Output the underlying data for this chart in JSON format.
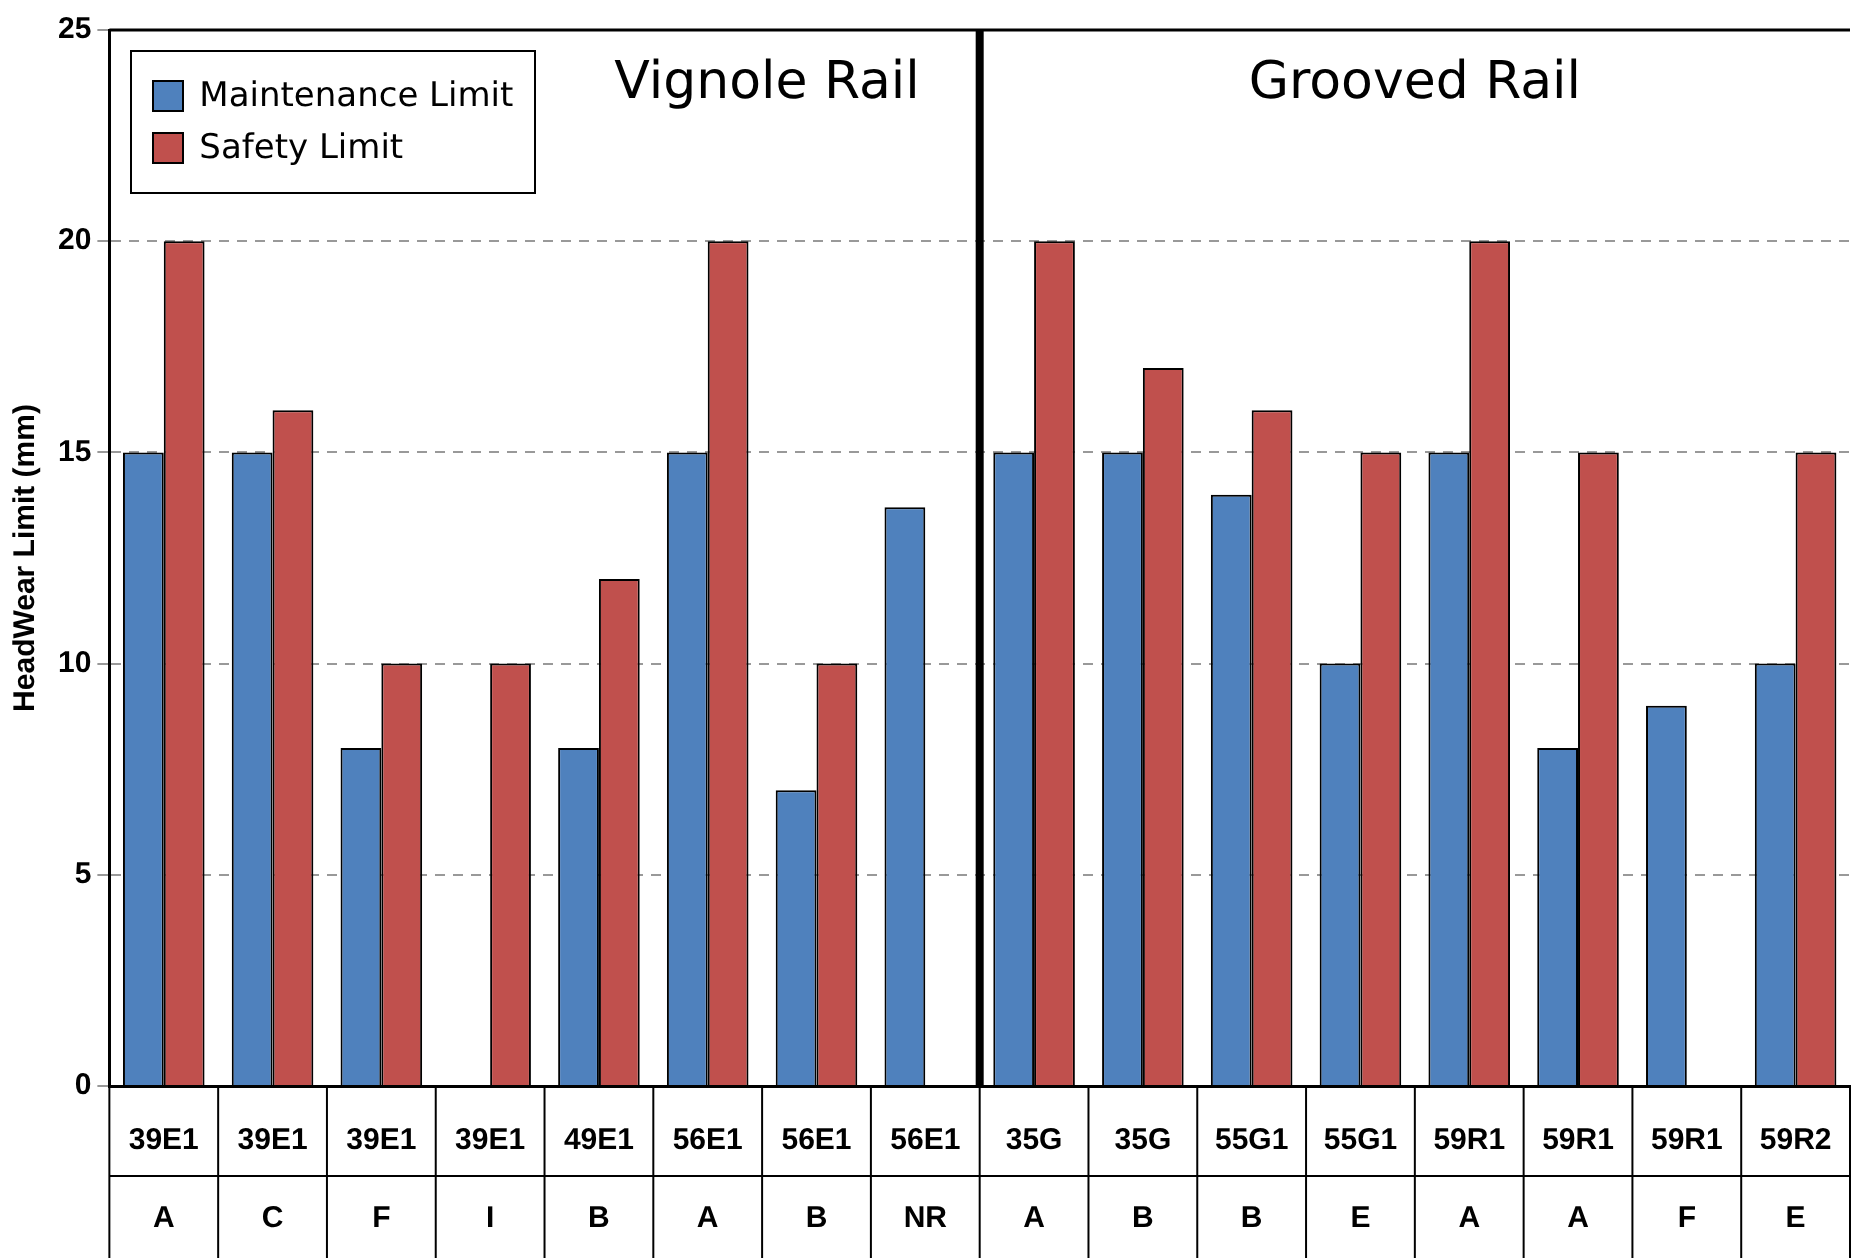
{
  "chart_data": {
    "type": "bar",
    "ylabel": "HeadWear Limit (mm)",
    "categories": [
      "39E1\nA",
      "39E1\nC",
      "39E1\nF",
      "39E1\nI",
      "49E1\nB",
      "56E1\nA",
      "56E1\nB",
      "56E1\nNR",
      "35G\nA",
      "35G\nB",
      "55G1\nB",
      "55G1\nE",
      "59R1\nA",
      "59R1\nA",
      "59R1\nF",
      "59R2\nE"
    ],
    "series": [
      {
        "name": "Maintenance Limit",
        "color": "#4f81bd",
        "values": [
          15,
          15,
          8,
          null,
          8,
          15,
          7,
          13.7,
          15,
          15,
          14,
          10,
          15,
          8,
          9,
          10
        ]
      },
      {
        "name": "Safety Limit",
        "color": "#c0504d",
        "values": [
          20,
          16,
          10,
          10,
          12,
          20,
          10,
          null,
          20,
          17,
          16,
          15,
          20,
          15,
          null,
          15
        ]
      }
    ],
    "ylim": [
      0,
      25
    ],
    "yticks": [
      0,
      5,
      10,
      15,
      20,
      25
    ],
    "grid": "y",
    "legend": "top left",
    "ref_lines": [
      {
        "axis": "x",
        "value": "35G\nA",
        "color": "#000000"
      }
    ],
    "annotations": [
      "Vignole Rail",
      "Grooved Rail"
    ]
  }
}
